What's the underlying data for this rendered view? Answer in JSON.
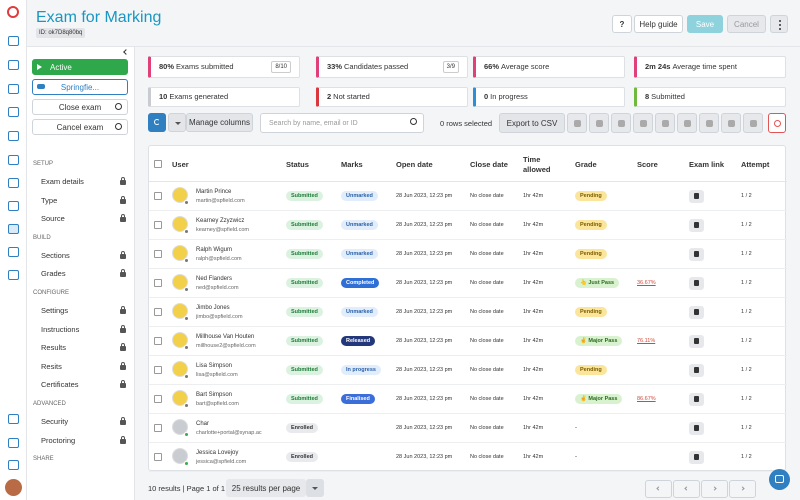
{
  "header": {
    "title": "Exam for Marking",
    "id": "ID: ok7D8q80bq",
    "help_icon": "?",
    "help": "Help guide",
    "save": "Save",
    "cancel": "Cancel"
  },
  "sidebar": {
    "status": "Active",
    "school": "Springfie...",
    "close": "Close exam",
    "cancel": "Cancel exam",
    "groups": [
      {
        "heading": "SETUP",
        "items": [
          "Exam details",
          "Type",
          "Source"
        ]
      },
      {
        "heading": "BUILD",
        "items": [
          "Sections",
          "Grades"
        ]
      },
      {
        "heading": "CONFIGURE",
        "items": [
          "Settings",
          "Instructions",
          "Results",
          "Resits",
          "Certificates"
        ]
      },
      {
        "heading": "ADVANCED",
        "items": [
          "Security",
          "Proctoring"
        ]
      },
      {
        "heading": "SHARE",
        "items": []
      }
    ]
  },
  "stats": [
    {
      "value": "80%",
      "label": "Exams submitted",
      "count": "8/10",
      "color": "#e0407a"
    },
    {
      "value": "33%",
      "label": "Candidates passed",
      "count": "3/9",
      "color": "#e0407a"
    },
    {
      "value": "66%",
      "label": "Average score",
      "color": "#e0407a"
    },
    {
      "value": "2m 24s",
      "label": "Average time spent",
      "color": "#e0407a"
    },
    {
      "value": "10",
      "label": "Exams generated",
      "color": "#c8ccd2"
    },
    {
      "value": "2",
      "label": "Not started",
      "color": "#d9363e"
    },
    {
      "value": "0",
      "label": "In progress",
      "color": "#2d8fd5"
    },
    {
      "value": "8",
      "label": "Submitted",
      "color": "#6fba3e"
    }
  ],
  "toolbar": {
    "manage": "Manage columns",
    "search": "Search by name, email or ID",
    "selected": "0 rows selected",
    "export": "Export to CSV"
  },
  "table": {
    "columns": [
      "User",
      "Status",
      "Marks",
      "Open date",
      "Close date",
      "Time allowed",
      "Grade",
      "Score",
      "Exam link",
      "Attempt"
    ],
    "rows": [
      {
        "name": "Martin Prince",
        "email": "martin@spfield.com",
        "status": {
          "text": "Submitted",
          "fg": "#1f7a3a",
          "bg": "#dcf2e1"
        },
        "marks": {
          "text": "Unmarked",
          "fg": "#2a5fa8",
          "bg": "#e1edfb"
        },
        "open": "28 Jun 2023, 12:23 pm",
        "close": "No close date",
        "time": "1hr 42m",
        "grade": {
          "text": "Pending",
          "fg": "#7a5b00",
          "bg": "#fbe59a"
        },
        "attempt": "1 / 2"
      },
      {
        "name": "Kearney Zzyzwicz",
        "email": "kearney@spfield.com",
        "status": {
          "text": "Submitted",
          "fg": "#1f7a3a",
          "bg": "#dcf2e1"
        },
        "marks": {
          "text": "Unmarked",
          "fg": "#2a5fa8",
          "bg": "#e1edfb"
        },
        "open": "28 Jun 2023, 12:23 pm",
        "close": "No close date",
        "time": "1hr 42m",
        "grade": {
          "text": "Pending",
          "fg": "#7a5b00",
          "bg": "#fbe59a"
        },
        "attempt": "1 / 2"
      },
      {
        "name": "Ralph Wigum",
        "email": "ralph@spfield.com",
        "status": {
          "text": "Submitted",
          "fg": "#1f7a3a",
          "bg": "#dcf2e1"
        },
        "marks": {
          "text": "Unmarked",
          "fg": "#2a5fa8",
          "bg": "#e1edfb"
        },
        "open": "28 Jun 2023, 12:23 pm",
        "close": "No close date",
        "time": "1hr 42m",
        "grade": {
          "text": "Pending",
          "fg": "#7a5b00",
          "bg": "#fbe59a"
        },
        "attempt": "1 / 2"
      },
      {
        "name": "Ned Flanders",
        "email": "ned@spfield.com",
        "status": {
          "text": "Submitted",
          "fg": "#1f7a3a",
          "bg": "#dcf2e1"
        },
        "marks": {
          "text": "Completed",
          "fg": "#ffffff",
          "bg": "#2f6fd6"
        },
        "open": "28 Jun 2023, 12:23 pm",
        "close": "No close date",
        "time": "1hr 42m",
        "grade": {
          "text": "👆 Just Pass",
          "fg": "#2d6a1f",
          "bg": "#d8f2cf"
        },
        "score": "36.67%",
        "attempt": "1 / 2"
      },
      {
        "name": "Jimbo Jones",
        "email": "jimbo@spfield.com",
        "status": {
          "text": "Submitted",
          "fg": "#1f7a3a",
          "bg": "#dcf2e1"
        },
        "marks": {
          "text": "Unmarked",
          "fg": "#2a5fa8",
          "bg": "#e1edfb"
        },
        "open": "28 Jun 2023, 12:23 pm",
        "close": "No close date",
        "time": "1hr 42m",
        "grade": {
          "text": "Pending",
          "fg": "#7a5b00",
          "bg": "#fbe59a"
        },
        "attempt": "1 / 2"
      },
      {
        "name": "Millhouse Van Houten",
        "email": "millhouse2@spfield.com",
        "status": {
          "text": "Submitted",
          "fg": "#1f7a3a",
          "bg": "#dcf2e1"
        },
        "marks": {
          "text": "Released",
          "fg": "#ffffff",
          "bg": "#22387a"
        },
        "open": "28 Jun 2023, 12:23 pm",
        "close": "No close date",
        "time": "1hr 42m",
        "grade": {
          "text": "✌ Major Pass",
          "fg": "#2d6a1f",
          "bg": "#d8f2cf"
        },
        "score": "76.11%",
        "attempt": "1 / 2"
      },
      {
        "name": "Lisa Simpson",
        "email": "lisa@spfield.com",
        "status": {
          "text": "Submitted",
          "fg": "#1f7a3a",
          "bg": "#dcf2e1"
        },
        "marks": {
          "text": "In progress",
          "fg": "#2a5fa8",
          "bg": "#e1edfb"
        },
        "open": "28 Jun 2023, 12:23 pm",
        "close": "No close date",
        "time": "1hr 42m",
        "grade": {
          "text": "Pending",
          "fg": "#7a5b00",
          "bg": "#fbe59a"
        },
        "attempt": "1 / 2"
      },
      {
        "name": "Bart Simpson",
        "email": "bart@spfield.com",
        "status": {
          "text": "Submitted",
          "fg": "#1f7a3a",
          "bg": "#dcf2e1"
        },
        "marks": {
          "text": "Finalised",
          "fg": "#ffffff",
          "bg": "#3b6ed8"
        },
        "open": "28 Jun 2023, 12:23 pm",
        "close": "No close date",
        "time": "1hr 42m",
        "grade": {
          "text": "✌ Major Pass",
          "fg": "#2d6a1f",
          "bg": "#d8f2cf"
        },
        "score": "86.67%",
        "attempt": "1 / 2"
      },
      {
        "name": "Char",
        "email": "charlotte+portal@synap.ac",
        "status": {
          "text": "Enrolled",
          "fg": "#333333",
          "bg": "#e8eaed"
        },
        "open": "28 Jun 2023, 12:23 pm",
        "close": "No close date",
        "time": "1hr 42m",
        "grade_plain": "-",
        "attempt": "1 / 2"
      },
      {
        "name": "Jessica Lovejoy",
        "email": "jessica@spfield.com",
        "status": {
          "text": "Enrolled",
          "fg": "#333333",
          "bg": "#e8eaed"
        },
        "open": "28 Jun 2023, 12:23 pm",
        "close": "No close date",
        "time": "1hr 42m",
        "grade_plain": "-",
        "attempt": "1 / 2"
      }
    ]
  },
  "footer": {
    "results": "10 results | Page 1 of 1",
    "per_page": "25 results per page"
  }
}
